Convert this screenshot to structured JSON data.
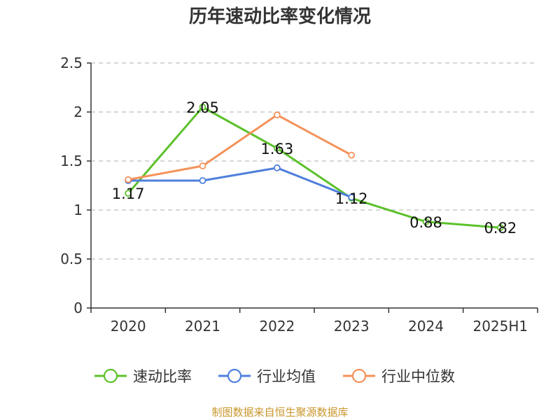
{
  "chart_data": {
    "type": "line",
    "title": "历年速动比率变化情况",
    "categories": [
      "2020",
      "2021",
      "2022",
      "2023",
      "2024",
      "2025H1"
    ],
    "ylim": [
      0,
      2.5
    ],
    "yticks": [
      "0",
      "0.5",
      "1",
      "1.5",
      "2",
      "2.5"
    ],
    "ytick_values": [
      0,
      0.5,
      1,
      1.5,
      2,
      2.5
    ],
    "grid": true,
    "legend_position": "bottom",
    "series": [
      {
        "name": "速动比率",
        "color": "#5cc12b",
        "values": [
          1.17,
          2.05,
          1.63,
          1.12,
          0.88,
          0.82
        ],
        "labels": [
          "1.17",
          "2.05",
          "1.63",
          "1.12",
          "0.88",
          "0.82"
        ]
      },
      {
        "name": "行业均值",
        "color": "#4f7fdb",
        "values": [
          1.3,
          1.3,
          1.43,
          1.13,
          null,
          null
        ]
      },
      {
        "name": "行业中位数",
        "color": "#f4925a",
        "values": [
          1.31,
          1.45,
          1.97,
          1.56,
          null,
          null
        ]
      }
    ]
  },
  "source_text": "制图数据来自恒生聚源数据库",
  "source_color": "#c8962a"
}
